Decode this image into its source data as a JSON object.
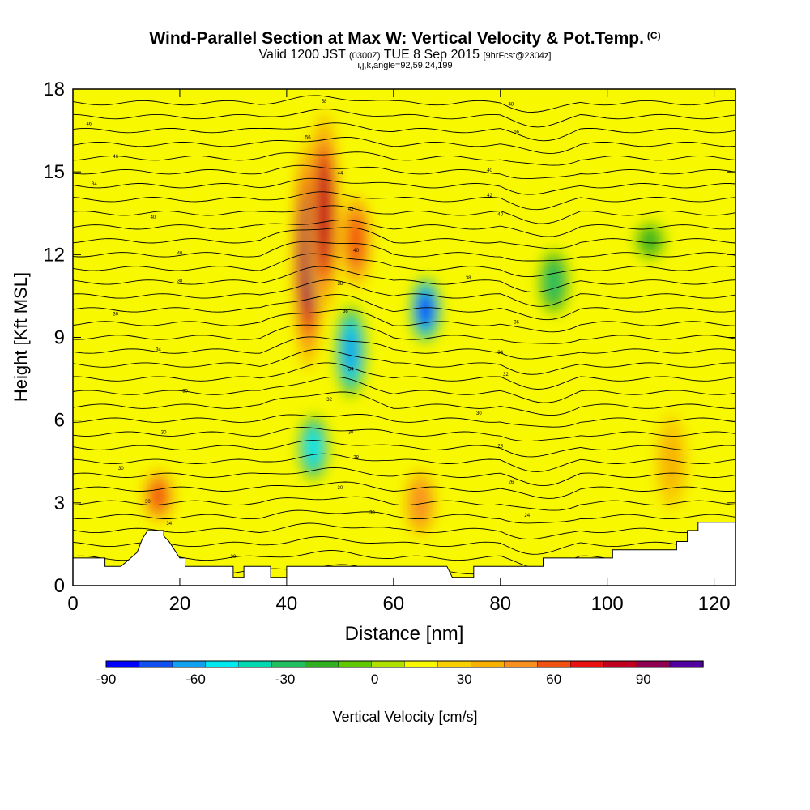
{
  "title": {
    "main": "Wind-Parallel Section at Max W: Vertical Velocity & Pot.Temp.",
    "copyright": "(C)",
    "valid_prefix": "Valid 1200 JST",
    "valid_utc": "(0300Z)",
    "valid_date": "TUE 8 Sep 2015",
    "forecast": "[9hrFcst@2304z]",
    "indices": "i,j,k,angle=92,59,24,199"
  },
  "chart_data": {
    "type": "heatmap",
    "xlabel": "Distance [nm]",
    "ylabel": "Height [Kft MSL]",
    "xlim": [
      0,
      124
    ],
    "ylim": [
      0,
      18
    ],
    "x_ticks": [
      0,
      20,
      40,
      60,
      80,
      100,
      120
    ],
    "y_ticks": [
      0,
      3,
      6,
      9,
      12,
      15,
      18
    ],
    "colorbar": {
      "label": "Vertical Velocity [cm/s]",
      "min": -90,
      "max": 110,
      "step": 10,
      "ticks": [
        -90,
        -60,
        -30,
        0,
        30,
        60,
        90
      ],
      "colors": [
        "#0000ff",
        "#1050f0",
        "#10a0f0",
        "#00e8f0",
        "#00d8b0",
        "#20c060",
        "#30b020",
        "#60c800",
        "#b0e000",
        "#f8f800",
        "#f8d000",
        "#f8b000",
        "#f89020",
        "#f05010",
        "#e81010",
        "#c00020",
        "#900050",
        "#5000a0"
      ]
    },
    "updraft_cores": [
      {
        "x": 44,
        "y_range": [
          8,
          16
        ],
        "w_cm_s": 75
      },
      {
        "x": 47,
        "y_range": [
          10,
          17
        ],
        "w_cm_s": 65
      },
      {
        "x": 53,
        "y_range": [
          11,
          14
        ],
        "w_cm_s": 45
      },
      {
        "x": 65,
        "y_range": [
          2,
          4
        ],
        "w_cm_s": 35
      },
      {
        "x": 16,
        "y_range": [
          2.5,
          4
        ],
        "w_cm_s": 40
      },
      {
        "x": 112,
        "y_range": [
          3,
          6
        ],
        "w_cm_s": 25
      }
    ],
    "downdraft_cores": [
      {
        "x": 66,
        "y_range": [
          9,
          11
        ],
        "w_cm_s": -85
      },
      {
        "x": 52,
        "y_range": [
          7,
          10
        ],
        "w_cm_s": -70
      },
      {
        "x": 45,
        "y_range": [
          4,
          6
        ],
        "w_cm_s": -60
      },
      {
        "x": 90,
        "y_range": [
          10,
          12
        ],
        "w_cm_s": -40
      },
      {
        "x": 108,
        "y_range": [
          12,
          13
        ],
        "w_cm_s": -30
      }
    ],
    "potential_temperature": {
      "units": "C",
      "levels_kft": [
        0.5,
        1,
        1.5,
        2,
        2.5,
        3,
        3.5,
        4,
        4.5,
        5,
        5.5,
        6,
        6.5,
        7,
        7.5,
        8,
        8.5,
        9,
        9.5,
        10,
        10.5,
        11,
        11.5,
        12,
        12.5,
        13,
        13.5,
        14,
        14.5,
        15,
        15.5,
        16,
        16.5,
        17,
        17.5
      ],
      "labels": [
        {
          "x": 30,
          "y": 1,
          "text": "30"
        },
        {
          "x": 50,
          "y": 3.5,
          "text": "30"
        },
        {
          "x": 56,
          "y": 2.6,
          "text": "30"
        },
        {
          "x": 14,
          "y": 3,
          "text": "30"
        },
        {
          "x": 18,
          "y": 2.2,
          "text": "34"
        },
        {
          "x": 9,
          "y": 4.2,
          "text": "30"
        },
        {
          "x": 17,
          "y": 5.5,
          "text": "30"
        },
        {
          "x": 21,
          "y": 7,
          "text": "30"
        },
        {
          "x": 16,
          "y": 8.5,
          "text": "34"
        },
        {
          "x": 8,
          "y": 9.8,
          "text": "30"
        },
        {
          "x": 20,
          "y": 11,
          "text": "38"
        },
        {
          "x": 20,
          "y": 12,
          "text": "40"
        },
        {
          "x": 15,
          "y": 13.3,
          "text": "40"
        },
        {
          "x": 4,
          "y": 14.5,
          "text": "34"
        },
        {
          "x": 8,
          "y": 15.5,
          "text": "46"
        },
        {
          "x": 3,
          "y": 16.7,
          "text": "46"
        },
        {
          "x": 47,
          "y": 17.5,
          "text": "58"
        },
        {
          "x": 44,
          "y": 16.2,
          "text": "56"
        },
        {
          "x": 50,
          "y": 14.9,
          "text": "44"
        },
        {
          "x": 52,
          "y": 13.6,
          "text": "42"
        },
        {
          "x": 53,
          "y": 12.1,
          "text": "40"
        },
        {
          "x": 50,
          "y": 10.9,
          "text": "38"
        },
        {
          "x": 51,
          "y": 9.9,
          "text": "36"
        },
        {
          "x": 52,
          "y": 7.8,
          "text": "34"
        },
        {
          "x": 48,
          "y": 6.7,
          "text": "32"
        },
        {
          "x": 52,
          "y": 5.5,
          "text": "30"
        },
        {
          "x": 53,
          "y": 4.6,
          "text": "28"
        },
        {
          "x": 82,
          "y": 17.4,
          "text": "48"
        },
        {
          "x": 83,
          "y": 16.4,
          "text": "56"
        },
        {
          "x": 78,
          "y": 15,
          "text": "40"
        },
        {
          "x": 78,
          "y": 14.1,
          "text": "42"
        },
        {
          "x": 80,
          "y": 13.4,
          "text": "40"
        },
        {
          "x": 74,
          "y": 11.1,
          "text": "38"
        },
        {
          "x": 83,
          "y": 9.5,
          "text": "36"
        },
        {
          "x": 80,
          "y": 8.4,
          "text": "34"
        },
        {
          "x": 81,
          "y": 7.6,
          "text": "32"
        },
        {
          "x": 76,
          "y": 6.2,
          "text": "30"
        },
        {
          "x": 80,
          "y": 5,
          "text": "28"
        },
        {
          "x": 82,
          "y": 3.7,
          "text": "26"
        },
        {
          "x": 85,
          "y": 2.5,
          "text": "24"
        }
      ]
    }
  }
}
